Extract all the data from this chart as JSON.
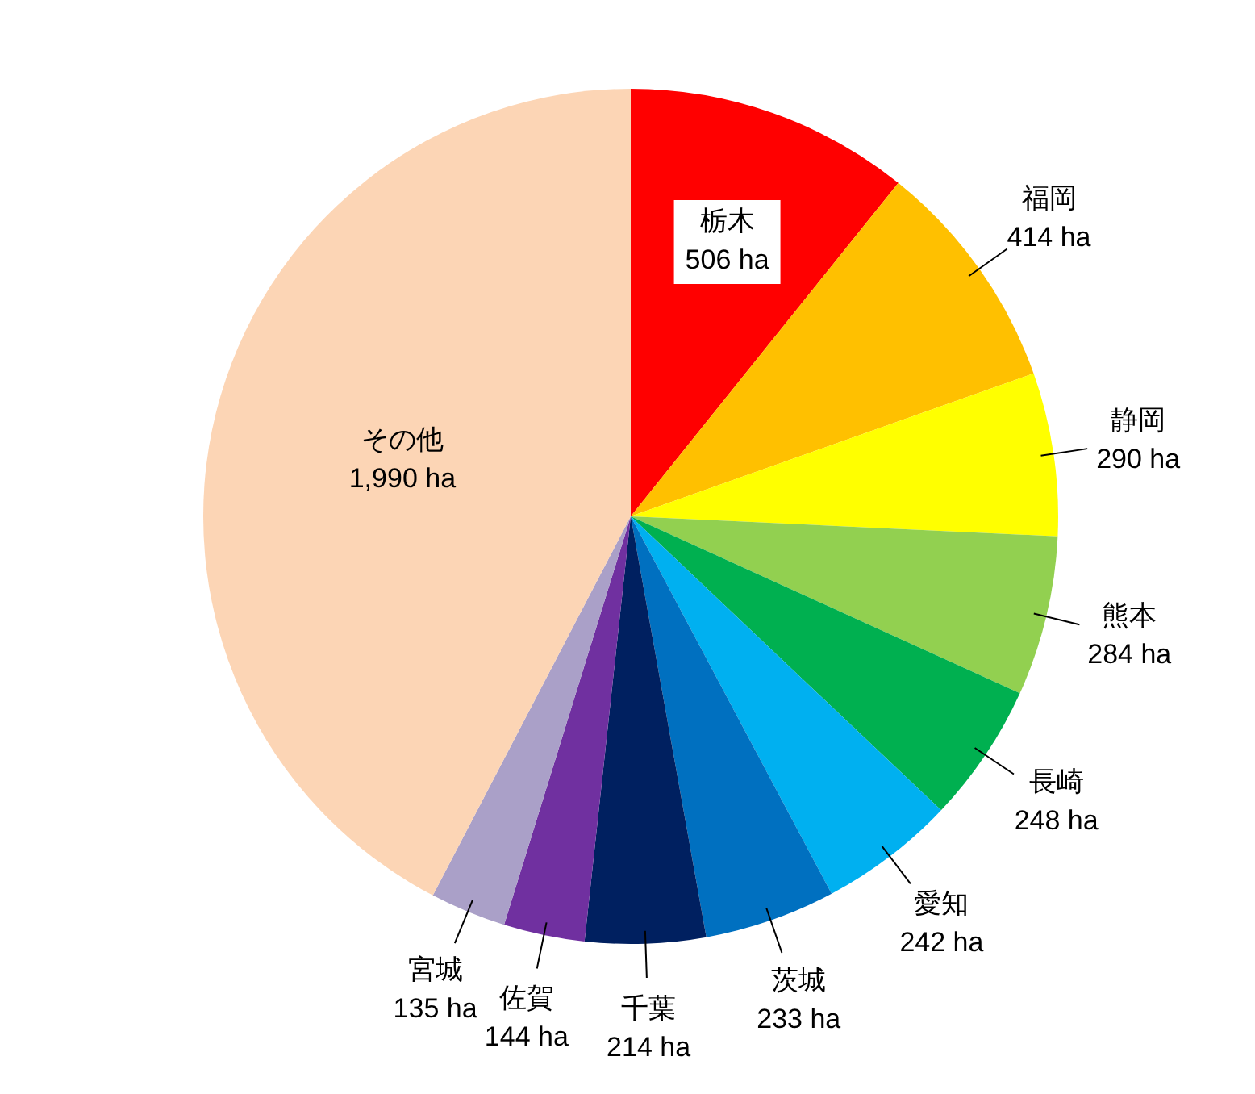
{
  "chart_data": {
    "type": "pie",
    "categories": [
      "栃木",
      "福岡",
      "静岡",
      "熊本",
      "長崎",
      "愛知",
      "茨城",
      "千葉",
      "佐賀",
      "宮城",
      "その他"
    ],
    "values": [
      506,
      414,
      290,
      284,
      248,
      242,
      233,
      214,
      144,
      135,
      1990
    ],
    "value_labels": [
      "506 ha",
      "414 ha",
      "290 ha",
      "284 ha",
      "248 ha",
      "242 ha",
      "233 ha",
      "214 ha",
      "144 ha",
      "135 ha",
      "1,990 ha"
    ],
    "colors": [
      "#ff0000",
      "#ffc000",
      "#ffff00",
      "#92d050",
      "#00b050",
      "#00b0f0",
      "#0070c0",
      "#002060",
      "#7030a0",
      "#aaa0c8",
      "#fcd5b5"
    ],
    "legend": false
  }
}
